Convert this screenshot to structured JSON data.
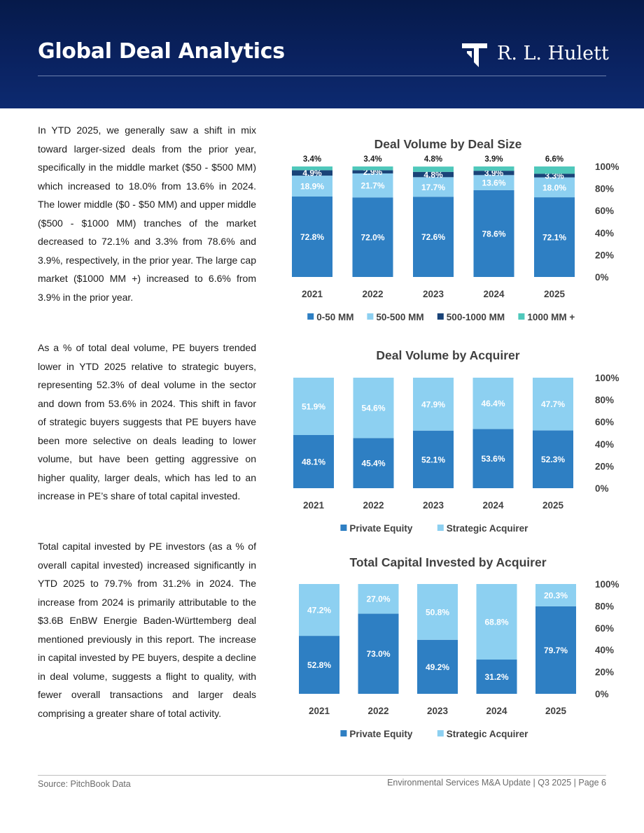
{
  "header": {
    "title": "Global Deal Analytics",
    "logo_text": "R. L. Hulett"
  },
  "body": {
    "p1": "In YTD 2025, we generally saw a shift in mix toward larger-sized deals from the prior year, specifically in the middle market ($50 - $500 MM) which increased to 18.0% from 13.6% in 2024. The lower middle ($0 - $50 MM) and upper middle ($500 - $1000 MM) tranches of the market decreased to 72.1% and 3.3% from 78.6% and 3.9%, respectively, in the prior year. The large cap market ($1000 MM +) increased to 6.6% from 3.9% in the prior year.",
    "p2": "As a % of total deal volume, PE buyers trended lower in YTD 2025 relative to strategic buyers, representing 52.3% of deal volume in the sector and down from 53.6% in 2024. This shift in favor of strategic buyers suggests that PE buyers have been more selective on deals leading to lower volume, but have been getting aggressive on higher quality, larger deals, which has led to an increase in PE’s share of total capital invested.",
    "p3": "Total capital invested by PE investors (as a % of overall capital invested) increased significantly in YTD 2025 to 79.7% from 31.2% in 2024. The increase from 2024 is primarily attributable to the $3.6B EnBW Energie Baden-Württemberg deal mentioned previously in this report. The increase in capital invested by PE buyers, despite a decline in deal volume, suggests a flight to quality, with fewer overall transactions and larger deals comprising a greater share of total activity."
  },
  "chart_data": [
    {
      "type": "bar",
      "stacked": true,
      "title": "Deal Volume by Deal Size",
      "categories": [
        "2021",
        "2022",
        "2023",
        "2024",
        "2025"
      ],
      "y_ticks": [
        "0%",
        "20%",
        "40%",
        "60%",
        "80%",
        "100%"
      ],
      "ylim": [
        0,
        100
      ],
      "series": [
        {
          "name": "0-50 MM",
          "values": [
            72.8,
            72.0,
            72.6,
            78.6,
            72.1
          ],
          "labels": [
            "72.8%",
            "72.0%",
            "72.6%",
            "78.6%",
            "72.1%"
          ],
          "color": "#2e7fc3"
        },
        {
          "name": "50-500 MM",
          "values": [
            18.9,
            21.7,
            17.7,
            13.6,
            18.0
          ],
          "labels": [
            "18.9%",
            "21.7%",
            "17.7%",
            "13.6%",
            "18.0%"
          ],
          "color": "#8dd0f1"
        },
        {
          "name": "500-1000 MM",
          "values": [
            4.9,
            2.9,
            4.8,
            3.9,
            3.3
          ],
          "labels": [
            "4.9%",
            "2.9%",
            "4.8%",
            "3.9%",
            "3.3%"
          ],
          "color": "#1a4378"
        },
        {
          "name": "1000 MM +",
          "values": [
            3.4,
            3.4,
            4.8,
            3.9,
            6.6
          ],
          "labels": [
            "3.4%",
            "3.4%",
            "4.8%",
            "3.9%",
            "6.6%"
          ],
          "color": "#4fc8bb"
        }
      ],
      "legend_position": "bottom"
    },
    {
      "type": "bar",
      "stacked": true,
      "title": "Deal Volume by Acquirer",
      "categories": [
        "2021",
        "2022",
        "2023",
        "2024",
        "2025"
      ],
      "y_ticks": [
        "0%",
        "20%",
        "40%",
        "60%",
        "80%",
        "100%"
      ],
      "ylim": [
        0,
        100
      ],
      "series": [
        {
          "name": "Private Equity",
          "values": [
            48.1,
            45.4,
            52.1,
            53.6,
            52.3
          ],
          "labels": [
            "48.1%",
            "45.4%",
            "52.1%",
            "53.6%",
            "52.3%"
          ],
          "color": "#2e7fc3"
        },
        {
          "name": "Strategic Acquirer",
          "values": [
            51.9,
            54.6,
            47.9,
            46.4,
            47.7
          ],
          "labels": [
            "51.9%",
            "54.6%",
            "47.9%",
            "46.4%",
            "47.7%"
          ],
          "color": "#8dd0f1"
        }
      ],
      "legend_position": "bottom"
    },
    {
      "type": "bar",
      "stacked": true,
      "title": "Total Capital Invested by Acquirer",
      "categories": [
        "2021",
        "2022",
        "2023",
        "2024",
        "2025"
      ],
      "y_ticks": [
        "0%",
        "20%",
        "40%",
        "60%",
        "80%",
        "100%"
      ],
      "ylim": [
        0,
        100
      ],
      "series": [
        {
          "name": "Private Equity",
          "values": [
            52.8,
            73.0,
            49.2,
            31.2,
            79.7
          ],
          "labels": [
            "52.8%",
            "73.0%",
            "49.2%",
            "31.2%",
            "79.7%"
          ],
          "color": "#2e7fc3"
        },
        {
          "name": "Strategic Acquirer",
          "values": [
            47.2,
            27.0,
            50.8,
            68.8,
            20.3
          ],
          "labels": [
            "47.2%",
            "27.0%",
            "50.8%",
            "68.8%",
            "20.3%"
          ],
          "color": "#8dd0f1"
        }
      ],
      "legend_position": "bottom"
    }
  ],
  "footer": {
    "source": "Source: PitchBook Data",
    "page_info": "Environmental Services M&A Update | Q3 2025 | Page 6"
  }
}
